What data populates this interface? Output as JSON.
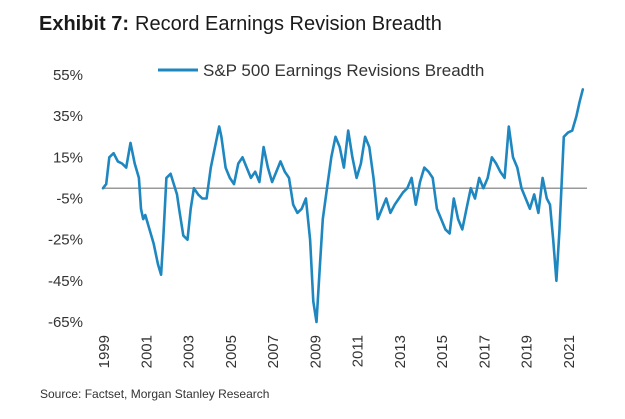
{
  "header": {
    "exhibit_label": "Exhibit 7:",
    "title": "Record Earnings Revision Breadth"
  },
  "footer": {
    "source": "Source: Factset, Morgan Stanley Research"
  },
  "colors": {
    "series": "#1f87c0",
    "zero_line": "#9a9a9a",
    "text": "#333333"
  },
  "chart_data": {
    "type": "line",
    "title": "Record Earnings Revision Breadth",
    "xlabel": "",
    "ylabel": "",
    "legend": "top",
    "grid": false,
    "ylim": [
      -65,
      55
    ],
    "xlim": [
      1999,
      2021.9
    ],
    "y_ticks": [
      55,
      35,
      15,
      -5,
      -25,
      -45,
      -65
    ],
    "y_tick_labels": [
      "55%",
      "35%",
      "15%",
      "-5%",
      "-25%",
      "-45%",
      "-65%"
    ],
    "x_ticks": [
      1999,
      2001,
      2003,
      2005,
      2007,
      2009,
      2011,
      2013,
      2015,
      2017,
      2019,
      2021
    ],
    "x_tick_labels": [
      "1999",
      "2001",
      "2003",
      "2005",
      "2007",
      "2009",
      "2011",
      "2013",
      "2015",
      "2017",
      "2019",
      "2021"
    ],
    "reference_line": 0,
    "series": [
      {
        "name": "S&P 500 Earnings Revisions Breadth",
        "x": [
          1999.0,
          1999.15,
          1999.3,
          1999.5,
          1999.7,
          1999.9,
          2000.1,
          2000.3,
          2000.5,
          2000.7,
          2000.8,
          2000.9,
          2001.0,
          2001.2,
          2001.4,
          2001.6,
          2001.75,
          2001.85,
          2002.0,
          2002.2,
          2002.35,
          2002.5,
          2002.6,
          2002.8,
          2003.0,
          2003.15,
          2003.3,
          2003.5,
          2003.7,
          2003.9,
          2004.1,
          2004.3,
          2004.5,
          2004.6,
          2004.8,
          2005.0,
          2005.2,
          2005.4,
          2005.6,
          2005.8,
          2006.0,
          2006.2,
          2006.4,
          2006.6,
          2006.8,
          2007.0,
          2007.2,
          2007.4,
          2007.6,
          2007.8,
          2008.0,
          2008.2,
          2008.4,
          2008.6,
          2008.8,
          2008.95,
          2009.1,
          2009.25,
          2009.4,
          2009.6,
          2009.8,
          2010.0,
          2010.2,
          2010.4,
          2010.6,
          2010.8,
          2011.0,
          2011.2,
          2011.4,
          2011.6,
          2011.8,
          2012.0,
          2012.2,
          2012.4,
          2012.6,
          2012.8,
          2013.0,
          2013.2,
          2013.4,
          2013.6,
          2013.8,
          2014.0,
          2014.2,
          2014.4,
          2014.6,
          2014.8,
          2015.0,
          2015.2,
          2015.4,
          2015.6,
          2015.8,
          2016.0,
          2016.2,
          2016.4,
          2016.6,
          2016.8,
          2017.0,
          2017.2,
          2017.4,
          2017.6,
          2017.8,
          2018.0,
          2018.2,
          2018.4,
          2018.6,
          2018.8,
          2019.0,
          2019.2,
          2019.4,
          2019.6,
          2019.8,
          2020.0,
          2020.15,
          2020.3,
          2020.45,
          2020.6,
          2020.8,
          2021.0,
          2021.2,
          2021.4,
          2021.55,
          2021.7
        ],
        "values": [
          0,
          2,
          15,
          17,
          13,
          12,
          10,
          22,
          12,
          5,
          -10,
          -15,
          -13,
          -20,
          -27,
          -37,
          -42,
          -25,
          5,
          7,
          2,
          -3,
          -10,
          -23,
          -25,
          -10,
          0,
          -3,
          -5,
          -5,
          10,
          20,
          30,
          25,
          10,
          5,
          2,
          12,
          15,
          10,
          5,
          8,
          3,
          20,
          10,
          3,
          8,
          13,
          8,
          5,
          -8,
          -12,
          -10,
          -5,
          -25,
          -55,
          -65,
          -40,
          -15,
          0,
          15,
          25,
          20,
          10,
          28,
          15,
          5,
          12,
          25,
          20,
          5,
          -15,
          -10,
          -5,
          -12,
          -8,
          -5,
          -2,
          0,
          5,
          -8,
          3,
          10,
          8,
          5,
          -10,
          -15,
          -20,
          -22,
          -5,
          -15,
          -20,
          -10,
          0,
          -5,
          5,
          0,
          5,
          15,
          12,
          8,
          5,
          30,
          15,
          10,
          0,
          -5,
          -10,
          -3,
          -12,
          5,
          -5,
          -8,
          -25,
          -45,
          -20,
          25,
          27,
          28,
          35,
          42,
          48
        ]
      }
    ]
  }
}
